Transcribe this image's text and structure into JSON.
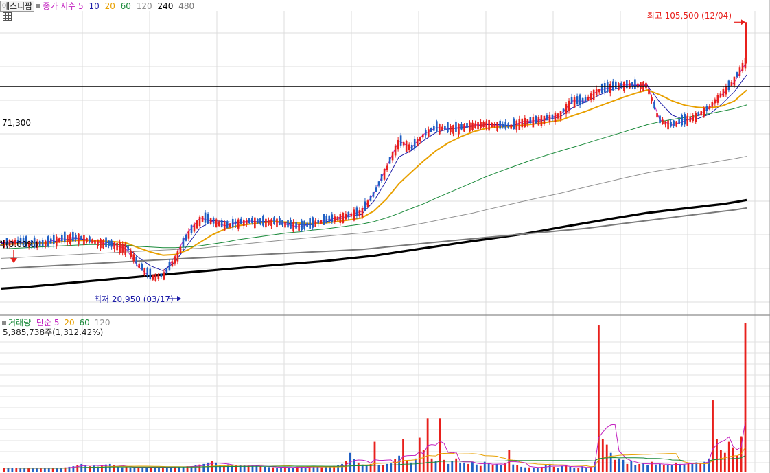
{
  "header": {
    "stock_name": "에스티팜",
    "indicator_label": "종가 지수",
    "ma_periods": [
      "5",
      "10",
      "20",
      "60",
      "120",
      "240",
      "480"
    ]
  },
  "volume_header": {
    "label": "거래량",
    "ma_label": "단순",
    "ma_periods": [
      "5",
      "20",
      "60",
      "120"
    ],
    "current_volume": "5,385,738주(1,312.42%)"
  },
  "annotations": {
    "high": "최고 105,500 (12/04)",
    "low": "최저 20,950 (03/17)",
    "level": "71,300",
    "change": "하락(0.00%)"
  },
  "colors": {
    "up": "#e8201c",
    "down": "#1f5fc4",
    "ma5": "#c21fbf",
    "ma10": "#1d1da8",
    "ma20": "#e8a000",
    "ma60": "#1a8a3a",
    "ma120": "#909090",
    "ma240": "#000000",
    "ma480": "#7a7a7a",
    "level_line": "#000000"
  },
  "chart_data": [
    {
      "type": "line",
      "title": "종가 지수",
      "y_scale": "log",
      "ylim": [
        19000,
        112000
      ],
      "high": {
        "value": 105500,
        "date": "12/04"
      },
      "low": {
        "value": 20950,
        "date": "03/17"
      },
      "horizontal_line": 71300,
      "series": [
        {
          "name": "5",
          "color": "#c21fbf",
          "values": [
            27500,
            27700,
            27400,
            27300,
            27800,
            28300,
            28400,
            27900,
            27500,
            27100,
            26600,
            23800,
            22300,
            22600,
            25400,
            29300,
            32000,
            31300,
            30500,
            31100,
            31400,
            31200,
            31300,
            30700,
            30300,
            30900,
            31500,
            32000,
            32600,
            33300,
            37200,
            43500,
            51200,
            49000,
            53300,
            55500,
            55100,
            55600,
            56300,
            56900,
            56200,
            55900,
            57600,
            57900,
            58800,
            60000,
            65300,
            65200,
            69500,
            70800,
            71900,
            71900,
            72000,
            58200,
            56400,
            57800,
            59500,
            62400,
            67800,
            73100,
            83000
          ]
        },
        {
          "name": "10",
          "color": "#1d1da8",
          "values": [
            27400,
            27500,
            27600,
            27500,
            27600,
            28000,
            28200,
            28000,
            27700,
            27400,
            27000,
            25200,
            23900,
            23200,
            24500,
            27200,
            30100,
            31500,
            31300,
            31100,
            31200,
            31300,
            31400,
            31000,
            30700,
            30700,
            31200,
            31700,
            32300,
            32700,
            35500,
            40200,
            46400,
            48200,
            51300,
            53900,
            55000,
            55400,
            56000,
            56500,
            56500,
            56200,
            56900,
            57500,
            58300,
            59300,
            62700,
            64800,
            67300,
            69700,
            71000,
            71700,
            71800,
            64800,
            59900,
            58200,
            58500,
            60200,
            64000,
            69000,
            76500
          ]
        },
        {
          "name": "20",
          "color": "#e8a000",
          "values": [
            27200,
            27300,
            27400,
            27400,
            27500,
            27700,
            27900,
            27900,
            27800,
            27700,
            27500,
            26700,
            26000,
            25500,
            25600,
            26300,
            27600,
            28900,
            29900,
            30500,
            30800,
            31100,
            31300,
            31200,
            31000,
            30900,
            31000,
            31300,
            31600,
            32000,
            33400,
            35900,
            39400,
            42300,
            45300,
            48200,
            50600,
            52500,
            54100,
            55200,
            55700,
            55900,
            56300,
            56800,
            57400,
            58000,
            59700,
            61200,
            63000,
            64800,
            66600,
            68300,
            69800,
            67800,
            65300,
            63600,
            62800,
            62500,
            63300,
            65200,
            69700
          ]
        },
        {
          "name": "60",
          "color": "#1a8a3a",
          "values": [
            26500,
            26600,
            26700,
            26800,
            26900,
            27000,
            27100,
            27200,
            27200,
            27200,
            27100,
            26900,
            26800,
            26700,
            26700,
            26800,
            27000,
            27300,
            27600,
            28000,
            28300,
            28600,
            28900,
            29200,
            29400,
            29700,
            29900,
            30200,
            30500,
            30800,
            31300,
            32000,
            32900,
            33900,
            34900,
            36100,
            37300,
            38500,
            39800,
            41100,
            42300,
            43500,
            44700,
            45900,
            47000,
            48100,
            49200,
            50300,
            51500,
            52700,
            53900,
            55200,
            56500,
            57500,
            58300,
            59000,
            59700,
            60400,
            61300,
            62300,
            63700
          ]
        },
        {
          "name": "120",
          "color": "#909090",
          "values": [
            25000,
            25100,
            25200,
            25300,
            25400,
            25500,
            25600,
            25700,
            25800,
            25900,
            26000,
            26100,
            26200,
            26300,
            26400,
            26500,
            26600,
            26800,
            27000,
            27200,
            27400,
            27600,
            27800,
            28000,
            28200,
            28400,
            28600,
            28800,
            29000,
            29200,
            29500,
            29800,
            30200,
            30600,
            31000,
            31500,
            32000,
            32500,
            33000,
            33600,
            34200,
            34800,
            35400,
            36000,
            36600,
            37200,
            37900,
            38600,
            39300,
            40000,
            40700,
            41400,
            42100,
            42700,
            43200,
            43700,
            44200,
            44700,
            45300,
            45900,
            46600
          ]
        },
        {
          "name": "240",
          "color": "#000000",
          "values": [
            20800,
            20900,
            21000,
            21150,
            21300,
            21450,
            21600,
            21750,
            21900,
            22050,
            22200,
            22350,
            22500,
            22650,
            22800,
            22950,
            23100,
            23250,
            23400,
            23550,
            23700,
            23850,
            24000,
            24150,
            24300,
            24450,
            24600,
            24800,
            25000,
            25200,
            25400,
            25700,
            26000,
            26300,
            26600,
            26900,
            27200,
            27500,
            27800,
            28100,
            28400,
            28700,
            29000,
            29400,
            29800,
            30200,
            30600,
            31000,
            31400,
            31800,
            32200,
            32600,
            33000,
            33300,
            33600,
            33900,
            34200,
            34500,
            34800,
            35200,
            35700
          ]
        },
        {
          "name": "480",
          "color": "#7a7a7a",
          "values": [
            23500,
            23600,
            23700,
            23800,
            23900,
            24000,
            24100,
            24200,
            24300,
            24400,
            24500,
            24600,
            24700,
            24800,
            24900,
            25000,
            25100,
            25200,
            25300,
            25400,
            25500,
            25600,
            25700,
            25800,
            25900,
            26000,
            26100,
            26200,
            26300,
            26400,
            26600,
            26800,
            27000,
            27200,
            27400,
            27600,
            27800,
            28000,
            28200,
            28400,
            28600,
            28800,
            29000,
            29200,
            29400,
            29600,
            29800,
            30000,
            30300,
            30600,
            30900,
            31200,
            31500,
            31800,
            32100,
            32400,
            32700,
            33000,
            33300,
            33600,
            34000
          ]
        }
      ]
    },
    {
      "type": "bar",
      "title": "거래량",
      "last_value": 5385738,
      "last_ratio": "1,312.42%",
      "values": [
        160000,
        150000,
        170000,
        160000,
        140000,
        150000,
        160000,
        150000,
        140000,
        150000,
        160000,
        140000,
        150000,
        170000,
        160000,
        180000,
        200000,
        220000,
        260000,
        300000,
        260000,
        220000,
        240000,
        210000,
        260000,
        280000,
        300000,
        250000,
        190000,
        180000,
        200000,
        180000,
        170000,
        190000,
        170000,
        160000,
        180000,
        170000,
        190000,
        200000,
        180000,
        190000,
        210000,
        200000,
        210000,
        220000,
        210000,
        250000,
        280000,
        300000,
        350000,
        400000,
        350000,
        250000,
        220000,
        280000,
        260000,
        240000,
        260000,
        240000,
        230000,
        230000,
        240000,
        210000,
        200000,
        190000,
        180000,
        170000,
        190000,
        200000,
        180000,
        170000,
        200000,
        190000,
        180000,
        200000,
        220000,
        190000,
        180000,
        200000,
        210000,
        230000,
        250000,
        300000,
        400000,
        700000,
        480000,
        350000,
        280000,
        250000,
        300000,
        1100000,
        250000,
        270000,
        300000,
        320000,
        480000,
        600000,
        1200000,
        400000,
        350000,
        500000,
        1250000,
        800000,
        1950000,
        500000,
        400000,
        1950000,
        450000,
        300000,
        400000,
        500000,
        350000,
        350000,
        300000,
        380000,
        280000,
        230000,
        380000,
        320000,
        250000,
        300000,
        250000,
        320000,
        800000,
        280000,
        250000,
        200000,
        180000,
        180000,
        170000,
        160000,
        200000,
        250000,
        300000,
        200000,
        170000,
        230000,
        260000,
        200000,
        170000,
        160000,
        220000,
        150000,
        200000,
        380000,
        5300000,
        1200000,
        1000000,
        700000,
        450000,
        500000,
        450000,
        300000,
        400000,
        250000,
        300000,
        320000,
        260000,
        380000,
        280000,
        300000,
        250000,
        250000,
        280000,
        350000,
        300000,
        280000,
        320000,
        300000,
        360000,
        340000,
        380000,
        500000,
        2600000,
        1200000,
        800000,
        700000,
        1100000,
        900000,
        600000,
        1300000,
        5385738
      ],
      "ma_series": [
        {
          "name": "5",
          "color": "#c21fbf"
        },
        {
          "name": "20",
          "color": "#e8a000"
        },
        {
          "name": "60",
          "color": "#1a8a3a"
        },
        {
          "name": "120",
          "color": "#909090"
        }
      ]
    }
  ]
}
